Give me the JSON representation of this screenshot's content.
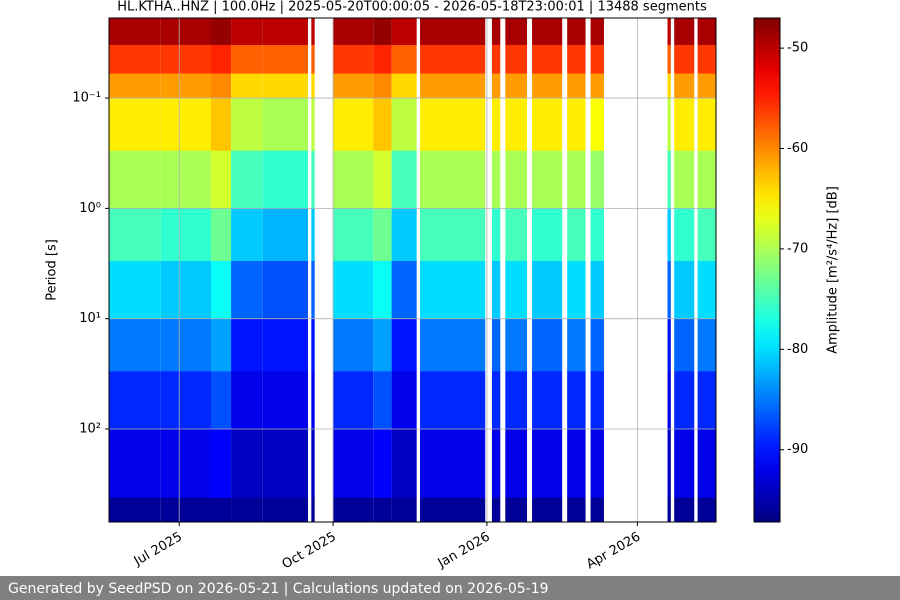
{
  "chart_data": {
    "type": "heatmap",
    "title": "HL.KTHA..HNZ | 100.0Hz | 2025-05-20T00:00:05 - 2026-05-18T23:00:01 | 13488 segments",
    "y_label": "Period [s]",
    "colorbar_label": "Amplitude [m²/s⁴/Hz] [dB]",
    "colormap": "jet",
    "y_log": true,
    "y_inverted": true,
    "grid": true,
    "xlim": [
      "2025-05-20",
      "2026-05-18"
    ],
    "xticks": [
      {
        "value": "2025-07-01",
        "label": "Jul 2025"
      },
      {
        "value": "2025-10-01",
        "label": "Oct 2025"
      },
      {
        "value": "2026-01-01",
        "label": "Jan 2026"
      },
      {
        "value": "2026-04-01",
        "label": "Apr 2026"
      }
    ],
    "ylim": [
      0.0188,
      697
    ],
    "yticks": [
      {
        "value": 0.1,
        "label": "10⁻¹"
      },
      {
        "value": 1,
        "label": "10⁰"
      },
      {
        "value": 10,
        "label": "10¹"
      },
      {
        "value": 100,
        "label": "10²"
      }
    ],
    "clim": [
      -97.2,
      -47
    ],
    "cticks": [
      -50,
      -60,
      -70,
      -80,
      -90
    ],
    "period_edges": [
      0.0188,
      0.033,
      0.06,
      0.1,
      0.3,
      1,
      3,
      10,
      30,
      100,
      420,
      697
    ],
    "x_edges": [
      "2025-05-20",
      "2025-06-20",
      "2025-07-20",
      "2025-08-01",
      "2025-08-20",
      "2025-09-16",
      "2025-09-18",
      "2025-09-20",
      "2025-10-01",
      "2025-10-25",
      "2025-11-05",
      "2025-11-20",
      "2025-11-22",
      "2025-12-31",
      "2026-01-04",
      "2026-01-09",
      "2026-01-12",
      "2026-01-25",
      "2026-01-28",
      "2026-02-15",
      "2026-02-18",
      "2026-03-01",
      "2026-03-04",
      "2026-03-12",
      "2026-04-19",
      "2026-04-21",
      "2026-04-23",
      "2026-05-05",
      "2026-05-07",
      "2026-05-18"
    ],
    "z": [
      [
        -49,
        -56,
        -61,
        -65,
        -70,
        -75,
        -80,
        -85,
        -89,
        -92,
        -96
      ],
      [
        -49,
        -56,
        -61,
        -65,
        -70,
        -76,
        -81,
        -85,
        -89,
        -92,
        -96
      ],
      [
        -48,
        -55,
        -60,
        -63,
        -68,
        -73,
        -78,
        -83,
        -87,
        -91,
        -96
      ],
      [
        -50,
        -58,
        -64,
        -69,
        -75,
        -81,
        -86,
        -90,
        -92,
        -94,
        -96
      ],
      [
        -50,
        -58,
        -64,
        -70,
        -76,
        -82,
        -87,
        -90,
        -92,
        -94,
        -96
      ],
      null,
      [
        -50,
        -58,
        -64,
        -69,
        -75,
        -81,
        -86,
        -90,
        -92,
        -94,
        -96
      ],
      null,
      [
        -49,
        -56,
        -61,
        -65,
        -70,
        -75,
        -80,
        -85,
        -89,
        -92,
        -96
      ],
      [
        -48,
        -55,
        -60,
        -63,
        -68,
        -73,
        -78,
        -83,
        -87,
        -91,
        -96
      ],
      [
        -50,
        -58,
        -64,
        -69,
        -75,
        -81,
        -86,
        -90,
        -92,
        -94,
        -96
      ],
      null,
      [
        -49,
        -56,
        -61,
        -65,
        -70,
        -75,
        -80,
        -85,
        -89,
        -92,
        -96
      ],
      null,
      [
        -49,
        -56,
        -61,
        -65,
        -70,
        -76,
        -81,
        -86,
        -89,
        -92,
        -96
      ],
      null,
      [
        -49,
        -56,
        -61,
        -65,
        -70,
        -75,
        -80,
        -85,
        -89,
        -92,
        -96
      ],
      null,
      [
        -49,
        -56,
        -61,
        -65,
        -70,
        -76,
        -81,
        -86,
        -89,
        -92,
        -96
      ],
      null,
      [
        -49,
        -56,
        -61,
        -65,
        -70,
        -75,
        -80,
        -85,
        -89,
        -92,
        -96
      ],
      null,
      [
        -49,
        -56,
        -61,
        -66,
        -71,
        -76,
        -81,
        -86,
        -89,
        -92,
        -96
      ],
      null,
      [
        -50,
        -58,
        -64,
        -69,
        -75,
        -81,
        -86,
        -90,
        -92,
        -94,
        -96
      ],
      null,
      [
        -49,
        -56,
        -61,
        -65,
        -70,
        -76,
        -81,
        -86,
        -89,
        -92,
        -96
      ],
      null,
      [
        -49,
        -56,
        -61,
        -65,
        -70,
        -75,
        -80,
        -85,
        -89,
        -92,
        -96
      ]
    ]
  },
  "footer": "Generated by SeedPSD on 2026-05-21 | Calculations updated on 2026-05-19"
}
